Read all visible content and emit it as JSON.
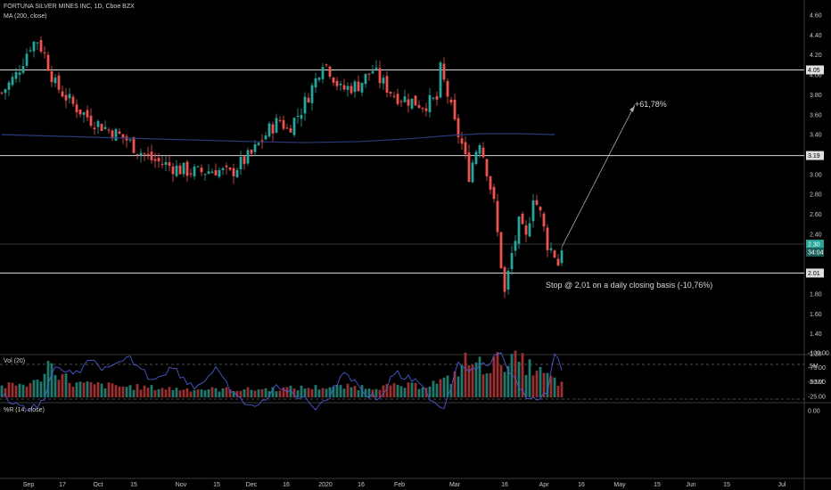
{
  "header": {
    "symbol_title": "FORTUNA SILVER MINES INC, 1D, Cboe BZX",
    "ma_label": "MA (200, close)",
    "vol_label": "Vol (20)",
    "wr_label": "%R (14, close)"
  },
  "annotations": {
    "target": "+61,78%",
    "stop": "Stop @ 2,01 on a daily closing basis (-10,76%)"
  },
  "badges": [
    {
      "text": "4.05",
      "price": 4.05
    },
    {
      "text": "3.19",
      "price": 3.19
    },
    {
      "text": "2.30",
      "price": 2.3
    },
    {
      "text": "34:04",
      "price": 2.22
    },
    {
      "text": "2.01",
      "price": 2.01
    }
  ],
  "colors": {
    "up": "#26a69a",
    "down": "#ef5350",
    "ma": "#2a3a7a",
    "wr_line": "#4a5ad0",
    "wr_fill": "#1a0f2a",
    "hline": "#d8d8d8"
  },
  "chart_data": [
    {
      "type": "candlestick",
      "title": "FORTUNA SILVER MINES INC, 1D, Cboe BZX",
      "ylim": [
        1.3,
        4.7
      ],
      "y_ticks": [
        "4.60",
        "4.40",
        "4.20",
        "4.00",
        "3.80",
        "3.60",
        "3.40",
        "3.20",
        "3.00",
        "2.80",
        "2.60",
        "2.40",
        "2.20",
        "2.00",
        "1.80",
        "1.60",
        "1.40",
        "1.20"
      ],
      "x_ticks": [
        "Sep",
        "17",
        "Oct",
        "15",
        "Nov",
        "15",
        "Dec",
        "16",
        "2020",
        "16",
        "Feb",
        "Mar",
        "16",
        "Apr",
        "16",
        "May",
        "15",
        "Jun",
        "15",
        "Jul"
      ],
      "horizontal_levels": [
        4.05,
        3.19,
        2.3,
        2.01
      ],
      "close_path": [
        [
          0,
          3.82
        ],
        [
          4,
          4.0
        ],
        [
          8,
          4.3
        ],
        [
          10,
          4.35
        ],
        [
          12,
          4.2
        ],
        [
          15,
          3.9
        ],
        [
          20,
          3.7
        ],
        [
          25,
          3.55
        ],
        [
          30,
          3.45
        ],
        [
          35,
          3.35
        ],
        [
          38,
          3.25
        ],
        [
          42,
          3.15
        ],
        [
          46,
          3.1
        ],
        [
          50,
          3.05
        ],
        [
          55,
          3.02
        ],
        [
          60,
          3.05
        ],
        [
          64,
          3.0
        ],
        [
          66,
          3.08
        ],
        [
          70,
          3.2
        ],
        [
          75,
          3.45
        ],
        [
          78,
          3.55
        ],
        [
          80,
          3.45
        ],
        [
          84,
          3.65
        ],
        [
          88,
          3.95
        ],
        [
          90,
          4.15
        ],
        [
          92,
          4.05
        ],
        [
          95,
          3.85
        ],
        [
          100,
          3.9
        ],
        [
          104,
          4.05
        ],
        [
          106,
          3.95
        ],
        [
          110,
          3.8
        ],
        [
          114,
          3.75
        ],
        [
          118,
          3.7
        ],
        [
          122,
          3.75
        ],
        [
          123,
          4.05
        ],
        [
          125,
          3.8
        ],
        [
          127,
          3.5
        ],
        [
          129,
          3.3
        ],
        [
          131,
          3.0
        ],
        [
          133,
          3.25
        ],
        [
          134,
          3.35
        ],
        [
          136,
          3.05
        ],
        [
          138,
          2.7
        ],
        [
          140,
          2.1
        ],
        [
          141,
          1.8
        ],
        [
          143,
          2.2
        ],
        [
          145,
          2.5
        ],
        [
          147,
          2.35
        ],
        [
          149,
          2.8
        ],
        [
          151,
          2.6
        ],
        [
          153,
          2.3
        ],
        [
          155,
          2.2
        ],
        [
          156,
          2.1
        ],
        [
          157,
          2.28
        ]
      ],
      "ma200_path": [
        [
          0,
          3.4
        ],
        [
          20,
          3.38
        ],
        [
          40,
          3.36
        ],
        [
          60,
          3.34
        ],
        [
          70,
          3.33
        ],
        [
          85,
          3.32
        ],
        [
          100,
          3.33
        ],
        [
          115,
          3.36
        ],
        [
          125,
          3.39
        ],
        [
          135,
          3.41
        ],
        [
          145,
          3.41
        ],
        [
          155,
          3.4
        ]
      ]
    },
    {
      "type": "bar",
      "title": "Vol (20)",
      "ylim": [
        0,
        6.5
      ],
      "y_ticks": [
        "5M",
        "2.5M"
      ],
      "volume_path": [
        [
          0,
          1.8
        ],
        [
          10,
          2.5
        ],
        [
          13,
          5.6
        ],
        [
          20,
          2.3
        ],
        [
          35,
          1.8
        ],
        [
          50,
          1.4
        ],
        [
          70,
          1.3
        ],
        [
          90,
          1.7
        ],
        [
          110,
          1.8
        ],
        [
          118,
          2.0
        ],
        [
          126,
          3.0
        ],
        [
          130,
          6.0
        ],
        [
          136,
          5.1
        ],
        [
          140,
          6.2
        ],
        [
          145,
          6.0
        ],
        [
          150,
          4.4
        ],
        [
          157,
          2.2
        ]
      ]
    },
    {
      "type": "line",
      "title": "%R (14, close)",
      "ylim": [
        -105,
        5
      ],
      "y_ticks": [
        "0.00",
        "-25.00",
        "-50.00",
        "-75.00",
        "-100.00"
      ],
      "levels": [
        -20,
        -80
      ],
      "wr_path": [
        [
          0,
          -30
        ],
        [
          3,
          -15
        ],
        [
          8,
          -2
        ],
        [
          12,
          -18
        ],
        [
          15,
          -80
        ],
        [
          20,
          -60
        ],
        [
          25,
          -85
        ],
        [
          30,
          -70
        ],
        [
          36,
          -90
        ],
        [
          42,
          -55
        ],
        [
          48,
          -75
        ],
        [
          54,
          -40
        ],
        [
          60,
          -70
        ],
        [
          66,
          -20
        ],
        [
          72,
          -5
        ],
        [
          76,
          -40
        ],
        [
          82,
          -30
        ],
        [
          88,
          -8
        ],
        [
          92,
          -25
        ],
        [
          96,
          -70
        ],
        [
          102,
          -30
        ],
        [
          106,
          -20
        ],
        [
          110,
          -65
        ],
        [
          116,
          -50
        ],
        [
          122,
          -12
        ],
        [
          124,
          -6
        ],
        [
          128,
          -85
        ],
        [
          132,
          -70
        ],
        [
          136,
          -80
        ],
        [
          140,
          -100
        ],
        [
          143,
          -60
        ],
        [
          147,
          -25
        ],
        [
          150,
          -15
        ],
        [
          153,
          -35
        ],
        [
          155,
          -95
        ],
        [
          157,
          -75
        ]
      ]
    }
  ]
}
